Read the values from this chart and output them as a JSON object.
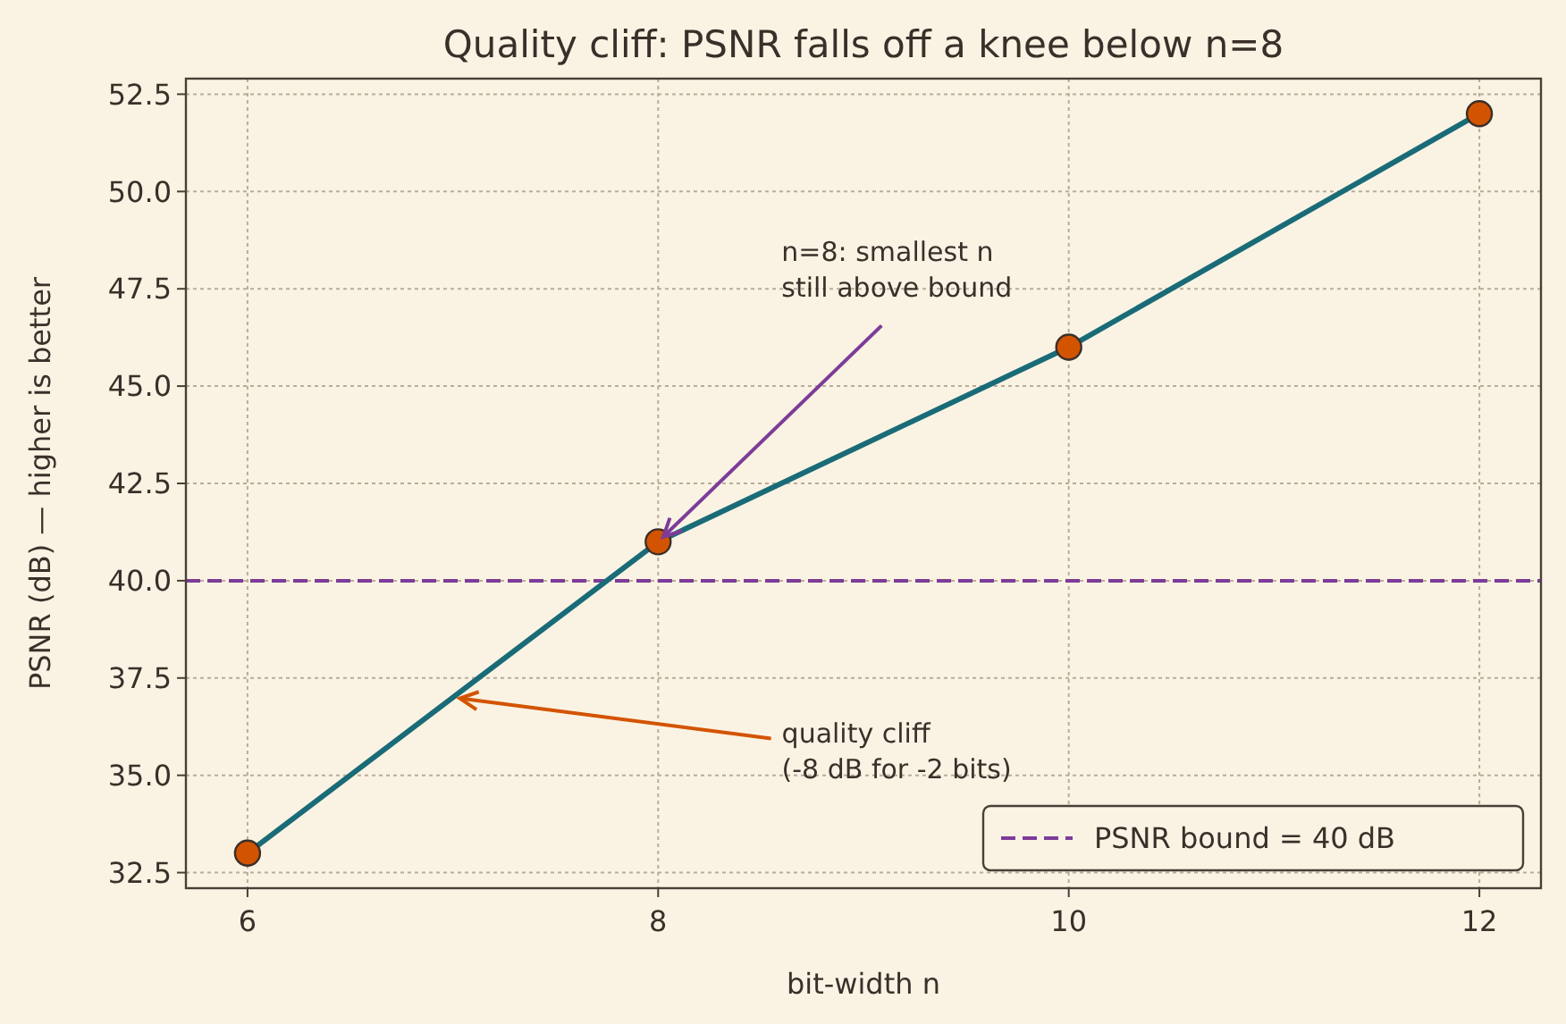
{
  "chart_data": {
    "type": "line",
    "title": "Quality cliff: PSNR falls off a knee below n=8",
    "xlabel": "bit-width  n",
    "ylabel": "PSNR (dB)  — higher is better",
    "x": [
      6,
      8,
      10,
      12
    ],
    "series": [
      {
        "color": "#1a6b78",
        "values": [
          33,
          41,
          46,
          52
        ]
      }
    ],
    "marker": "circle",
    "line_style": "solid",
    "grid": true,
    "legend": "bottom right",
    "xlim": [
      5.7,
      12.3
    ],
    "xticks": [
      6,
      8,
      10,
      12
    ],
    "ylim": [
      32.1,
      52.9
    ],
    "yticks": [
      32.5,
      {
        "value": 35,
        "label": "35.0"
      },
      37.5,
      {
        "value": 40,
        "label": "40.0"
      },
      42.5,
      {
        "value": 45,
        "label": "45.0"
      },
      47.5,
      {
        "value": 50,
        "label": "50.0"
      },
      52.5
    ],
    "ref_lines": [
      {
        "axis": "y",
        "value": 40,
        "label": "PSNR bound = 40 dB",
        "color": "#7d3c98",
        "line_style": "dashed"
      }
    ],
    "annotations": [
      {
        "text": "n=8: smallest n\nstill above bound",
        "x": 8,
        "y": 41
      },
      {
        "text": "quality cliff\n(-8 dB for -2 bits)",
        "x": 7,
        "y": 37
      }
    ]
  }
}
